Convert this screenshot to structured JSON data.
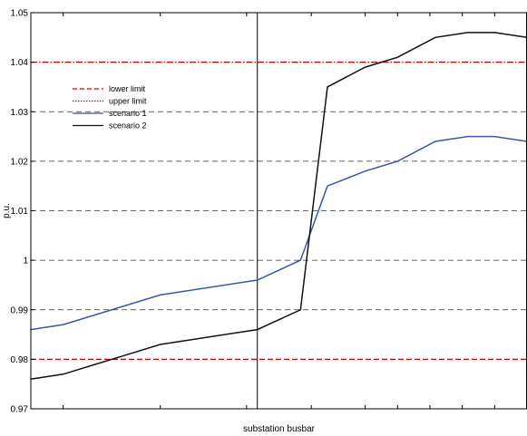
{
  "chart_data": {
    "type": "line",
    "xlabel": "substation busbar",
    "ylabel": "p.u.",
    "ylim": [
      0.97,
      1.05
    ],
    "xlim": [
      0,
      23
    ],
    "yticks": [
      0.97,
      0.98,
      0.99,
      1,
      1.01,
      1.02,
      1.03,
      1.04,
      1.05
    ],
    "ytick_labels": [
      "0.97",
      "0.98",
      "0.99",
      "1",
      "1.01",
      "1.02",
      "1.03",
      "1.04",
      "1.05"
    ],
    "xticks": [
      1.5,
      6,
      10,
      13,
      15.5,
      17,
      18.5,
      20,
      21.5
    ],
    "hlines": [
      {
        "name": "lower limit",
        "y": 0.98,
        "color": "#cc0000",
        "style": "dashed"
      },
      {
        "name": "upper limit",
        "y": 1.04,
        "color": "#cc0000",
        "style": "dotted"
      }
    ],
    "vline": {
      "x": 10.5,
      "color": "#000000"
    },
    "dashed_grid": [
      0.99,
      1,
      1.01,
      1.02,
      1.03
    ],
    "series": [
      {
        "name": "scenario 1",
        "color": "#3a57a7",
        "x": [
          0,
          1.5,
          6,
          10.5,
          12.5,
          13.75,
          15.5,
          17,
          18.75,
          20.25,
          21.5,
          23
        ],
        "y": [
          0.986,
          0.987,
          0.993,
          0.996,
          1.0,
          1.015,
          1.018,
          1.02,
          1.024,
          1.025,
          1.025,
          1.024
        ]
      },
      {
        "name": "scenario 2",
        "color": "#111111",
        "x": [
          0,
          1.5,
          6,
          10.5,
          12.5,
          13.75,
          15.5,
          17,
          18.75,
          20.25,
          21.5,
          23
        ],
        "y": [
          0.976,
          0.977,
          0.983,
          0.986,
          0.99,
          1.035,
          1.039,
          1.041,
          1.045,
          1.046,
          1.046,
          1.045
        ]
      }
    ],
    "legend": {
      "position": "upper-left",
      "entries": [
        {
          "label": "lower limit",
          "color": "#cc0000",
          "style": "dashed"
        },
        {
          "label": "upper limit",
          "color": "#cc0000",
          "style": "dotted"
        },
        {
          "label": "scenario 1",
          "color": "#3a57a7",
          "style": "solid"
        },
        {
          "label": "scenario 2",
          "color": "#111111",
          "style": "solid"
        }
      ]
    },
    "grid": true
  }
}
